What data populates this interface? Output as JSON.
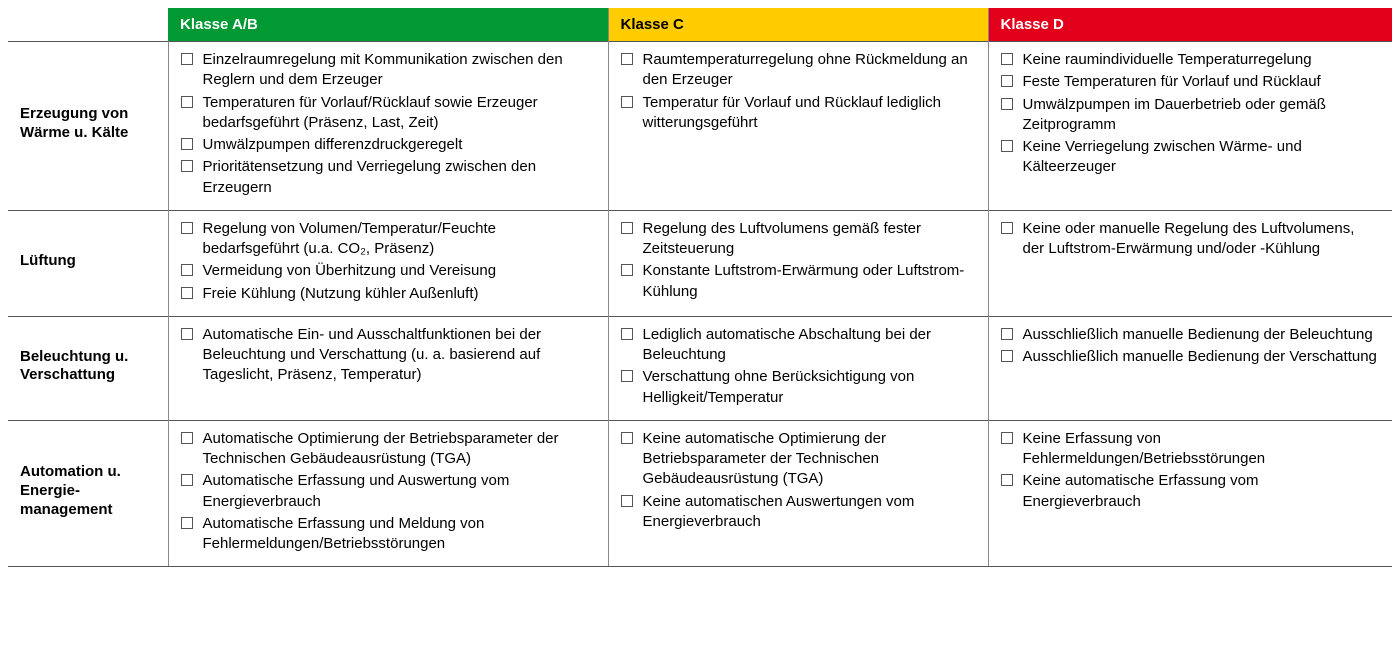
{
  "table": {
    "type": "table",
    "column_headers": [
      {
        "label": "Klasse A/B",
        "bg": "#009933",
        "fg": "#ffffff"
      },
      {
        "label": "Klasse C",
        "bg": "#ffcc00",
        "fg": "#000000"
      },
      {
        "label": "Klasse D",
        "bg": "#e2001a",
        "fg": "#ffffff"
      }
    ],
    "border_color": "#555555",
    "cell_border_color": "#888888",
    "font_size_pt": 11,
    "rows": [
      {
        "label": "Erzeugung von Wärme u. Kälte",
        "cells": [
          [
            "Einzelraumregelung mit Kommunikation zwischen den Reglern und dem Erzeuger",
            "Temperaturen für Vorlauf/Rücklauf sowie Erzeuger bedarfsgeführt (Präsenz, Last, Zeit)",
            "Umwälzpumpen differenzdruckgeregelt",
            "Prioritätensetzung und Verriegelung zwischen den Erzeugern"
          ],
          [
            "Raumtemperaturregelung ohne Rückmeldung an den Erzeuger",
            "Temperatur für Vorlauf und Rücklauf lediglich witterungsgeführt"
          ],
          [
            "Keine raumindividuelle Temperaturregelung",
            "Feste Temperaturen für Vorlauf und Rücklauf",
            "Umwälzpumpen im Dauerbetrieb oder gemäß Zeitprogramm",
            "Keine Verriegelung zwischen Wärme- und Kälteerzeuger"
          ]
        ]
      },
      {
        "label": "Lüftung",
        "cells": [
          [
            "Regelung von Volumen/Temperatur/Feuchte bedarfsgeführt (u.a. CO₂, Präsenz)",
            "Vermeidung von Überhitzung und Vereisung",
            "Freie Kühlung (Nutzung kühler Außenluft)"
          ],
          [
            "Regelung des Luftvolumens gemäß fester Zeitsteuerung",
            "Konstante Luftstrom-Erwärmung oder Luftstrom-Kühlung"
          ],
          [
            "Keine oder manuelle Regelung des Luftvolumens, der Luftstrom-Erwärmung und/oder -Kühlung"
          ]
        ]
      },
      {
        "label": "Beleuchtung u. Verschattung",
        "cells": [
          [
            "Automatische Ein- und Ausschaltfunktionen bei der Beleuchtung und Verschattung (u. a. basierend auf Tageslicht, Präsenz, Temperatur)"
          ],
          [
            "Lediglich automatische Abschaltung bei der Beleuchtung",
            "Verschattung ohne Berücksichtigung von Helligkeit/Temperatur"
          ],
          [
            "Ausschließlich manuelle Bedienung der Beleuchtung",
            "Ausschließlich manuelle Bedienung der Verschattung"
          ]
        ]
      },
      {
        "label": "Automation u. Energie­management",
        "cells": [
          [
            "Automatische Optimierung der Betriebsparameter der Technischen Gebäudeausrüstung (TGA)",
            "Automatische Erfassung und Auswertung vom Energieverbrauch",
            "Automatische Erfassung und Meldung von Fehlermeldungen/Betriebsstörungen"
          ],
          [
            "Keine automatische Optimierung der Betriebsparameter der Technischen Gebäudeausrüstung (TGA)",
            "Keine automatischen Auswertungen vom Energieverbrauch"
          ],
          [
            "Keine Erfassung von Fehlermeldungen/Betriebsstörungen",
            "Keine automatische Erfassung vom Energieverbrauch"
          ]
        ]
      }
    ]
  }
}
